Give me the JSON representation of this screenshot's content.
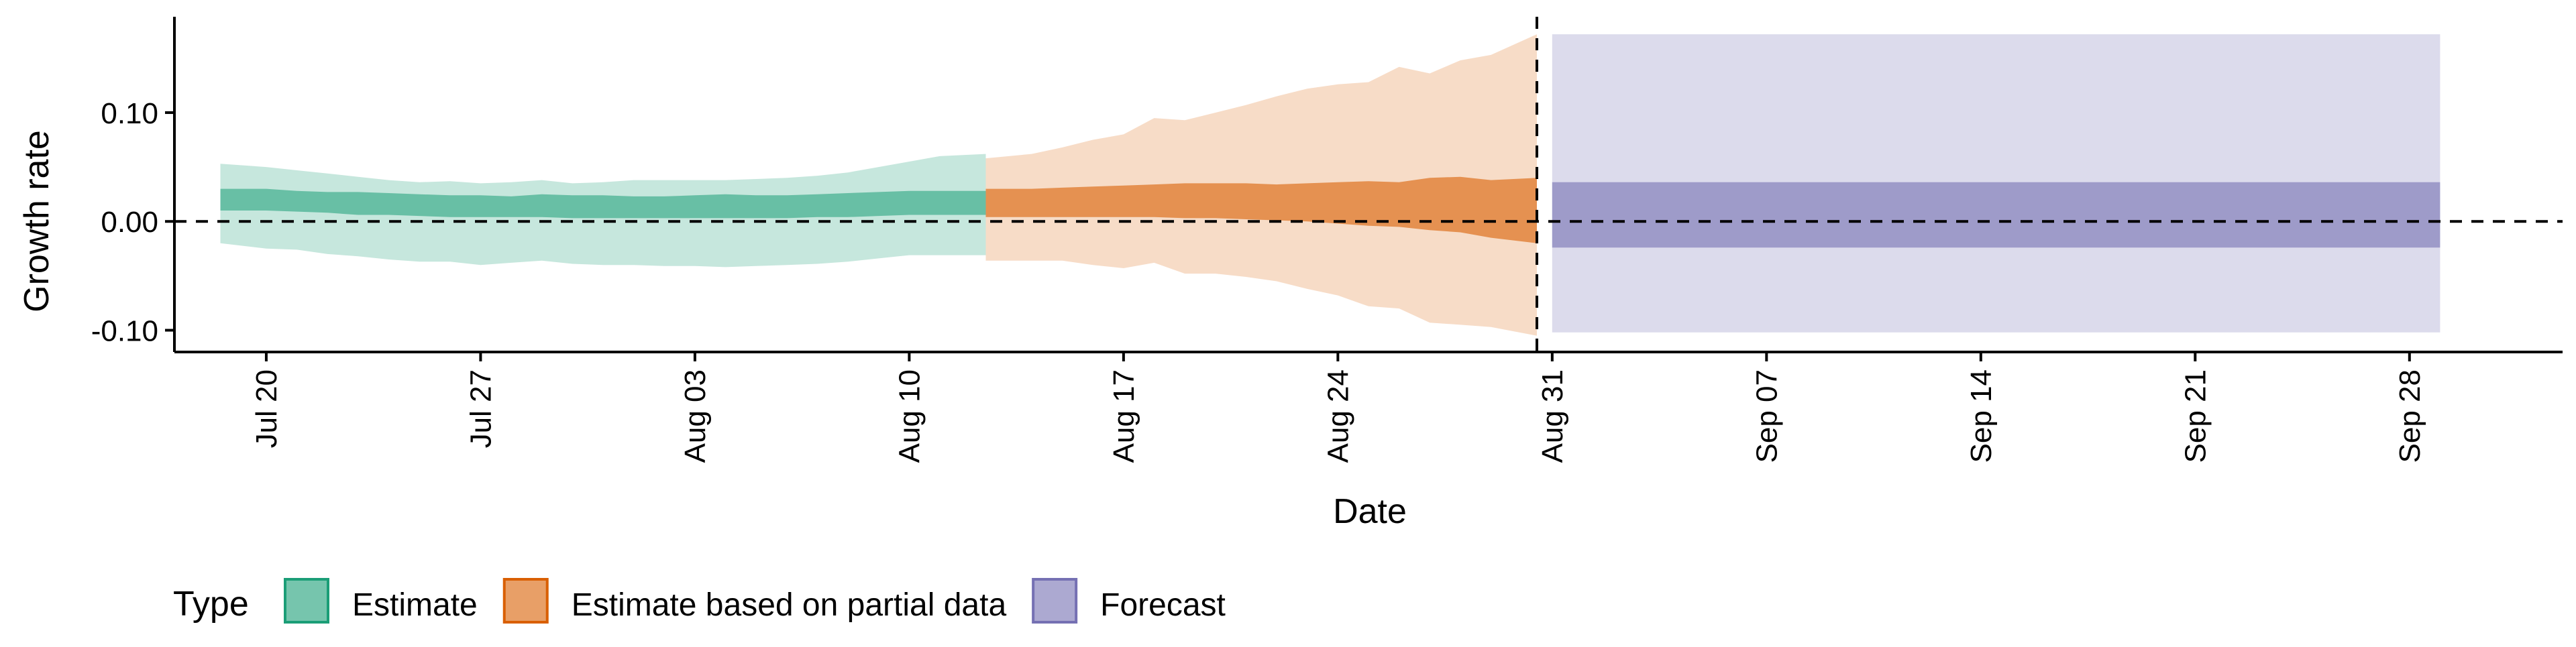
{
  "chart_data": {
    "type": "area",
    "ylabel": "Growth rate",
    "xlabel": "Date",
    "ylim": [
      -0.12,
      0.185
    ],
    "y_ticks": [
      -0.1,
      0.0,
      0.1
    ],
    "y_tick_labels": [
      "-0.10",
      "0.00",
      "0.10"
    ],
    "x_start": "2020-07-17",
    "x_end": "2020-10-03",
    "x_ticks": [
      "2020-07-20",
      "2020-07-27",
      "2020-08-03",
      "2020-08-10",
      "2020-08-17",
      "2020-08-24",
      "2020-08-31",
      "2020-09-07",
      "2020-09-14",
      "2020-09-21",
      "2020-09-28"
    ],
    "x_tick_labels": [
      "Jul 20",
      "Jul 27",
      "Aug 03",
      "Aug 10",
      "Aug 17",
      "Aug 24",
      "Aug 31",
      "Sep 07",
      "Sep 14",
      "Sep 21",
      "Sep 28"
    ],
    "hline_y": 0.0,
    "vline_date": "2020-08-30",
    "grid": false,
    "legend": {
      "position": "bottom-left",
      "title": "Type",
      "items": [
        {
          "label": "Estimate",
          "fill": "#1b9e77",
          "stroke": "#1b9e77"
        },
        {
          "label": "Estimate based on partial data",
          "fill": "#d95f02",
          "stroke": "#d95f02"
        },
        {
          "label": "Forecast",
          "fill": "#7570b3",
          "stroke": "#7570b3"
        }
      ]
    },
    "series": [
      {
        "name": "Estimate",
        "color": "#1b9e77",
        "inner_alpha": 0.55,
        "outer_alpha": 0.25,
        "points": [
          {
            "date": "2020-07-19",
            "lo90": -0.02,
            "lo50": 0.01,
            "hi50": 0.03,
            "hi90": 0.053
          },
          {
            "date": "2020-07-20",
            "lo90": -0.025,
            "lo50": 0.01,
            "hi50": 0.03,
            "hi90": 0.05
          },
          {
            "date": "2020-07-21",
            "lo90": -0.026,
            "lo50": 0.009,
            "hi50": 0.028,
            "hi90": 0.047
          },
          {
            "date": "2020-07-22",
            "lo90": -0.03,
            "lo50": 0.008,
            "hi50": 0.027,
            "hi90": 0.044
          },
          {
            "date": "2020-07-23",
            "lo90": -0.032,
            "lo50": 0.006,
            "hi50": 0.027,
            "hi90": 0.041
          },
          {
            "date": "2020-07-24",
            "lo90": -0.035,
            "lo50": 0.006,
            "hi50": 0.026,
            "hi90": 0.038
          },
          {
            "date": "2020-07-25",
            "lo90": -0.037,
            "lo50": 0.005,
            "hi50": 0.025,
            "hi90": 0.036
          },
          {
            "date": "2020-07-26",
            "lo90": -0.037,
            "lo50": 0.004,
            "hi50": 0.024,
            "hi90": 0.037
          },
          {
            "date": "2020-07-27",
            "lo90": -0.04,
            "lo50": 0.004,
            "hi50": 0.024,
            "hi90": 0.035
          },
          {
            "date": "2020-07-28",
            "lo90": -0.038,
            "lo50": 0.004,
            "hi50": 0.023,
            "hi90": 0.036
          },
          {
            "date": "2020-07-29",
            "lo90": -0.036,
            "lo50": 0.004,
            "hi50": 0.025,
            "hi90": 0.038
          },
          {
            "date": "2020-07-30",
            "lo90": -0.039,
            "lo50": 0.003,
            "hi50": 0.024,
            "hi90": 0.035
          },
          {
            "date": "2020-07-31",
            "lo90": -0.04,
            "lo50": 0.003,
            "hi50": 0.024,
            "hi90": 0.036
          },
          {
            "date": "2020-08-01",
            "lo90": -0.04,
            "lo50": 0.003,
            "hi50": 0.023,
            "hi90": 0.038
          },
          {
            "date": "2020-08-02",
            "lo90": -0.041,
            "lo50": 0.003,
            "hi50": 0.023,
            "hi90": 0.038
          },
          {
            "date": "2020-08-03",
            "lo90": -0.041,
            "lo50": 0.003,
            "hi50": 0.024,
            "hi90": 0.038
          },
          {
            "date": "2020-08-04",
            "lo90": -0.042,
            "lo50": 0.003,
            "hi50": 0.025,
            "hi90": 0.038
          },
          {
            "date": "2020-08-05",
            "lo90": -0.041,
            "lo50": 0.003,
            "hi50": 0.024,
            "hi90": 0.039
          },
          {
            "date": "2020-08-06",
            "lo90": -0.04,
            "lo50": 0.003,
            "hi50": 0.024,
            "hi90": 0.04
          },
          {
            "date": "2020-08-07",
            "lo90": -0.039,
            "lo50": 0.004,
            "hi50": 0.025,
            "hi90": 0.042
          },
          {
            "date": "2020-08-08",
            "lo90": -0.037,
            "lo50": 0.004,
            "hi50": 0.026,
            "hi90": 0.045
          },
          {
            "date": "2020-08-09",
            "lo90": -0.034,
            "lo50": 0.005,
            "hi50": 0.027,
            "hi90": 0.05
          },
          {
            "date": "2020-08-10",
            "lo90": -0.031,
            "lo50": 0.006,
            "hi50": 0.028,
            "hi90": 0.055
          },
          {
            "date": "2020-08-11",
            "lo90": -0.031,
            "lo50": 0.006,
            "hi50": 0.028,
            "hi90": 0.06
          },
          {
            "date": "2020-08-12",
            "lo90": -0.031,
            "lo50": 0.006,
            "hi50": 0.028,
            "hi90": 0.062
          }
        ]
      },
      {
        "name": "Estimate based on partial data",
        "color": "#d95f02",
        "inner_alpha": 0.6,
        "outer_alpha": 0.22,
        "points": [
          {
            "date": "2020-08-13",
            "lo90": -0.036,
            "lo50": 0.004,
            "hi50": 0.03,
            "hi90": 0.058
          },
          {
            "date": "2020-08-14",
            "lo90": -0.036,
            "lo50": 0.004,
            "hi50": 0.03,
            "hi90": 0.062
          },
          {
            "date": "2020-08-15",
            "lo90": -0.036,
            "lo50": 0.004,
            "hi50": 0.031,
            "hi90": 0.068
          },
          {
            "date": "2020-08-16",
            "lo90": -0.04,
            "lo50": 0.004,
            "hi50": 0.032,
            "hi90": 0.075
          },
          {
            "date": "2020-08-17",
            "lo90": -0.043,
            "lo50": 0.004,
            "hi50": 0.033,
            "hi90": 0.08
          },
          {
            "date": "2020-08-18",
            "lo90": -0.038,
            "lo50": 0.004,
            "hi50": 0.034,
            "hi90": 0.095
          },
          {
            "date": "2020-08-19",
            "lo90": -0.048,
            "lo50": 0.003,
            "hi50": 0.035,
            "hi90": 0.093
          },
          {
            "date": "2020-08-20",
            "lo90": -0.048,
            "lo50": 0.003,
            "hi50": 0.035,
            "hi90": 0.1
          },
          {
            "date": "2020-08-21",
            "lo90": -0.051,
            "lo50": 0.002,
            "hi50": 0.035,
            "hi90": 0.107
          },
          {
            "date": "2020-08-22",
            "lo90": -0.055,
            "lo50": 0.001,
            "hi50": 0.034,
            "hi90": 0.115
          },
          {
            "date": "2020-08-23",
            "lo90": -0.062,
            "lo50": 0.0,
            "hi50": 0.035,
            "hi90": 0.122
          },
          {
            "date": "2020-08-24",
            "lo90": -0.068,
            "lo50": -0.002,
            "hi50": 0.036,
            "hi90": 0.126
          },
          {
            "date": "2020-08-25",
            "lo90": -0.078,
            "lo50": -0.004,
            "hi50": 0.037,
            "hi90": 0.128
          },
          {
            "date": "2020-08-26",
            "lo90": -0.08,
            "lo50": -0.005,
            "hi50": 0.036,
            "hi90": 0.142
          },
          {
            "date": "2020-08-27",
            "lo90": -0.093,
            "lo50": -0.008,
            "hi50": 0.04,
            "hi90": 0.136
          },
          {
            "date": "2020-08-28",
            "lo90": -0.095,
            "lo50": -0.01,
            "hi50": 0.041,
            "hi90": 0.148
          },
          {
            "date": "2020-08-29",
            "lo90": -0.097,
            "lo50": -0.015,
            "hi50": 0.038,
            "hi90": 0.153
          },
          {
            "date": "2020-08-30",
            "lo90": -0.105,
            "lo50": -0.02,
            "hi50": 0.04,
            "hi90": 0.172
          }
        ]
      },
      {
        "name": "Forecast",
        "color": "#7570b3",
        "inner_alpha": 0.6,
        "outer_alpha": 0.25,
        "points": [
          {
            "date": "2020-08-31",
            "lo90": -0.102,
            "lo50": -0.024,
            "hi50": 0.036,
            "hi90": 0.172
          },
          {
            "date": "2020-09-29",
            "lo90": -0.102,
            "lo50": -0.024,
            "hi50": 0.036,
            "hi90": 0.172
          }
        ]
      }
    ]
  }
}
